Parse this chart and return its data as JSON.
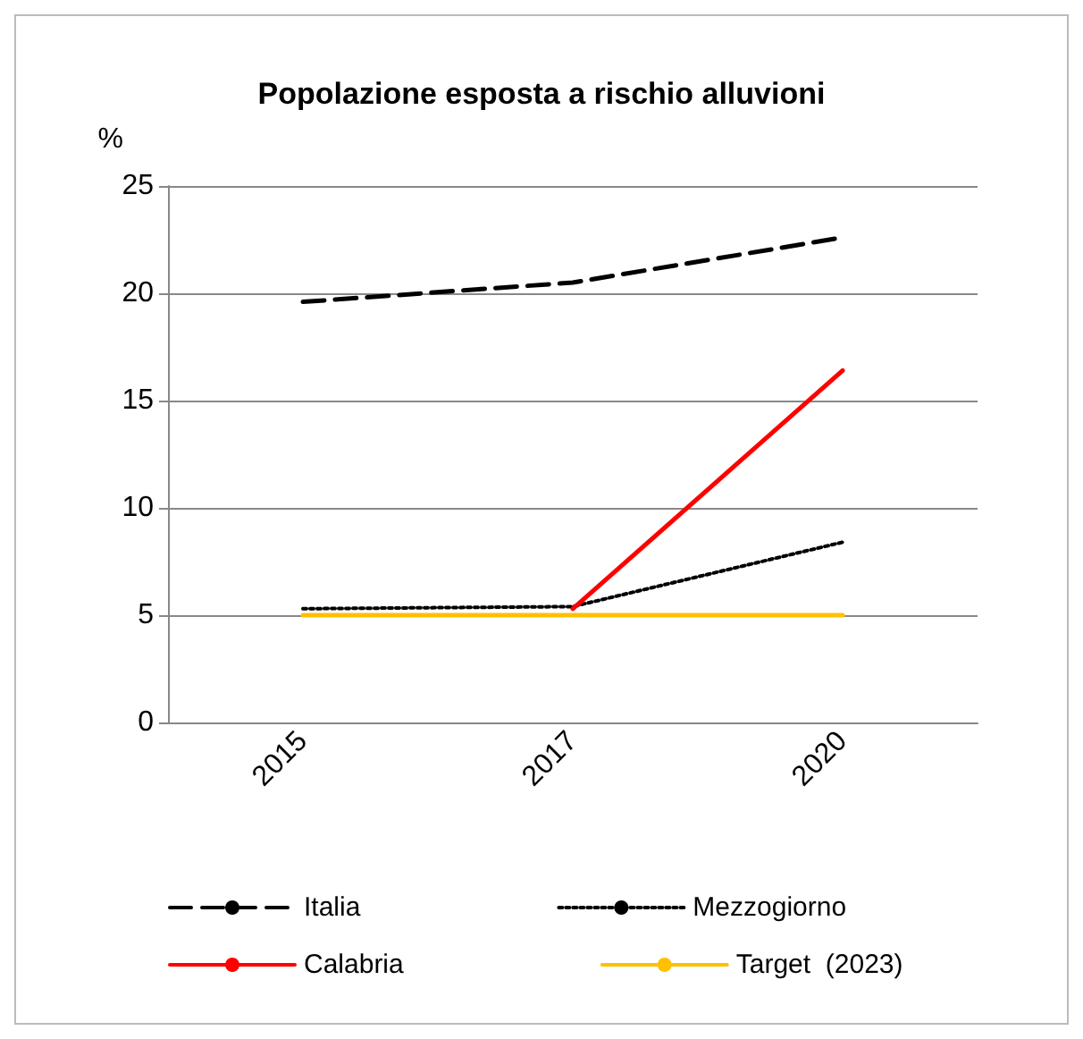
{
  "chart_data": {
    "type": "line",
    "title": "Popolazione esposta a rischio alluvioni",
    "ylabel": "%",
    "categories": [
      "2015",
      "2017",
      "2020"
    ],
    "series": [
      {
        "name": "Italia",
        "color": "#000000",
        "line_style": "dashed",
        "values": [
          19.6,
          20.5,
          22.6
        ]
      },
      {
        "name": "Mezzogiorno",
        "color": "#000000",
        "line_style": "dotted",
        "values": [
          5.3,
          5.4,
          8.4
        ]
      },
      {
        "name": "Calabria",
        "color": "#ff0000",
        "line_style": "solid",
        "values": [
          null,
          5.3,
          16.4
        ]
      },
      {
        "name": "Target  (2023)",
        "color": "#ffc000",
        "line_style": "solid",
        "values": [
          5,
          5,
          5
        ]
      }
    ],
    "ylim": [
      0,
      25
    ],
    "yticks": [
      0,
      5,
      10,
      15,
      20,
      25
    ],
    "grid": "y",
    "legend": "bottom",
    "marker": "none"
  }
}
